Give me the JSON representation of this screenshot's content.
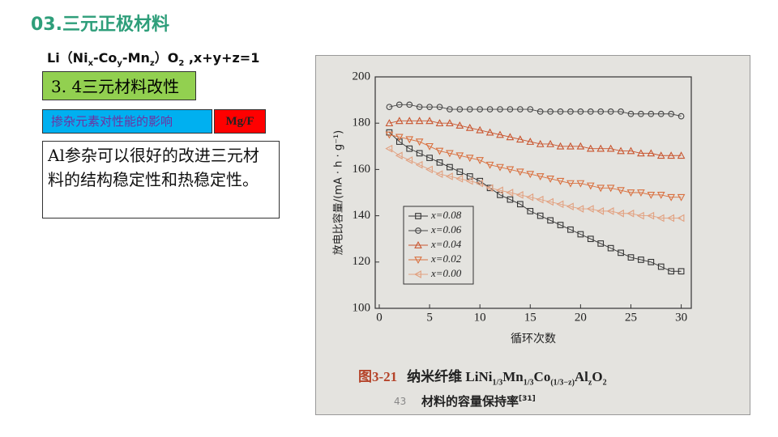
{
  "slide": {
    "title": "03.三元正极材料",
    "formula": [
      "Li（Ni",
      "x",
      "-Co",
      "y",
      "-Mn",
      "z",
      "）O",
      "2",
      " ,x+y+z=1"
    ],
    "section": "3. 4三元材料改性",
    "topic": "掺杂元素对性能的影响",
    "tag": "Mg/F",
    "body": "Al参杂可以很好的改进三元材料的结构稳定性和热稳定性。"
  },
  "chart_data": {
    "type": "line",
    "xlabel": "循环次数",
    "ylabel": "放电比容量/(mA · h · g⁻¹)",
    "x": [
      1,
      2,
      3,
      4,
      5,
      6,
      7,
      8,
      9,
      10,
      11,
      12,
      13,
      14,
      15,
      16,
      17,
      18,
      19,
      20,
      21,
      22,
      23,
      24,
      25,
      26,
      27,
      28,
      29,
      30
    ],
    "xlim": [
      -0.4,
      31
    ],
    "xticks": [
      0,
      5,
      10,
      15,
      20,
      25,
      30
    ],
    "ylim": [
      100,
      200
    ],
    "yticks": [
      100,
      120,
      140,
      160,
      180,
      200
    ],
    "legend": "lower-left",
    "series": [
      {
        "name": "x=0.08",
        "color": "#333333",
        "marker": "square",
        "values": [
          176,
          172,
          169,
          167,
          165,
          163,
          161,
          159,
          157,
          155,
          152,
          149,
          147,
          145,
          142,
          140,
          138,
          136,
          134,
          132,
          130,
          128,
          126,
          124,
          122,
          121,
          120,
          118,
          116,
          116
        ]
      },
      {
        "name": "x=0.06",
        "color": "#444444",
        "marker": "circle",
        "values": [
          187,
          188,
          188,
          187,
          187,
          187,
          186,
          186,
          186,
          186,
          186,
          186,
          186,
          186,
          186,
          185,
          185,
          185,
          185,
          185,
          185,
          185,
          185,
          185,
          184,
          184,
          184,
          184,
          184,
          183
        ]
      },
      {
        "name": "x=0.04",
        "color": "#c9552f",
        "marker": "triangle-up",
        "values": [
          180,
          181,
          181,
          181,
          181,
          180,
          180,
          179,
          178,
          177,
          176,
          175,
          174,
          173,
          172,
          171,
          171,
          170,
          170,
          170,
          169,
          169,
          169,
          168,
          168,
          167,
          167,
          166,
          166,
          166
        ]
      },
      {
        "name": "x=0.02",
        "color": "#d9703f",
        "marker": "triangle-down",
        "values": [
          175,
          174,
          173,
          172,
          170,
          168,
          167,
          166,
          165,
          164,
          162,
          161,
          160,
          159,
          158,
          157,
          156,
          155,
          154,
          154,
          153,
          152,
          152,
          151,
          150,
          150,
          149,
          149,
          148,
          148
        ]
      },
      {
        "name": "x=0.00",
        "color": "#e2a07f",
        "marker": "triangle-left",
        "values": [
          169,
          166,
          164,
          162,
          160,
          158,
          157,
          156,
          155,
          154,
          152,
          151,
          150,
          149,
          148,
          147,
          146,
          145,
          144,
          143,
          143,
          142,
          142,
          141,
          141,
          140,
          140,
          139,
          139,
          139
        ]
      }
    ],
    "caption_number": "图3-21",
    "caption_line1": [
      "纳米纤维 LiNi",
      "1/3",
      "Mn",
      "1/3",
      "Co",
      "(1/3−z)",
      "Al",
      "z",
      "O",
      "2"
    ],
    "caption_line2": [
      "材料的容量保持率",
      "[31]"
    ],
    "page_number": "43"
  }
}
